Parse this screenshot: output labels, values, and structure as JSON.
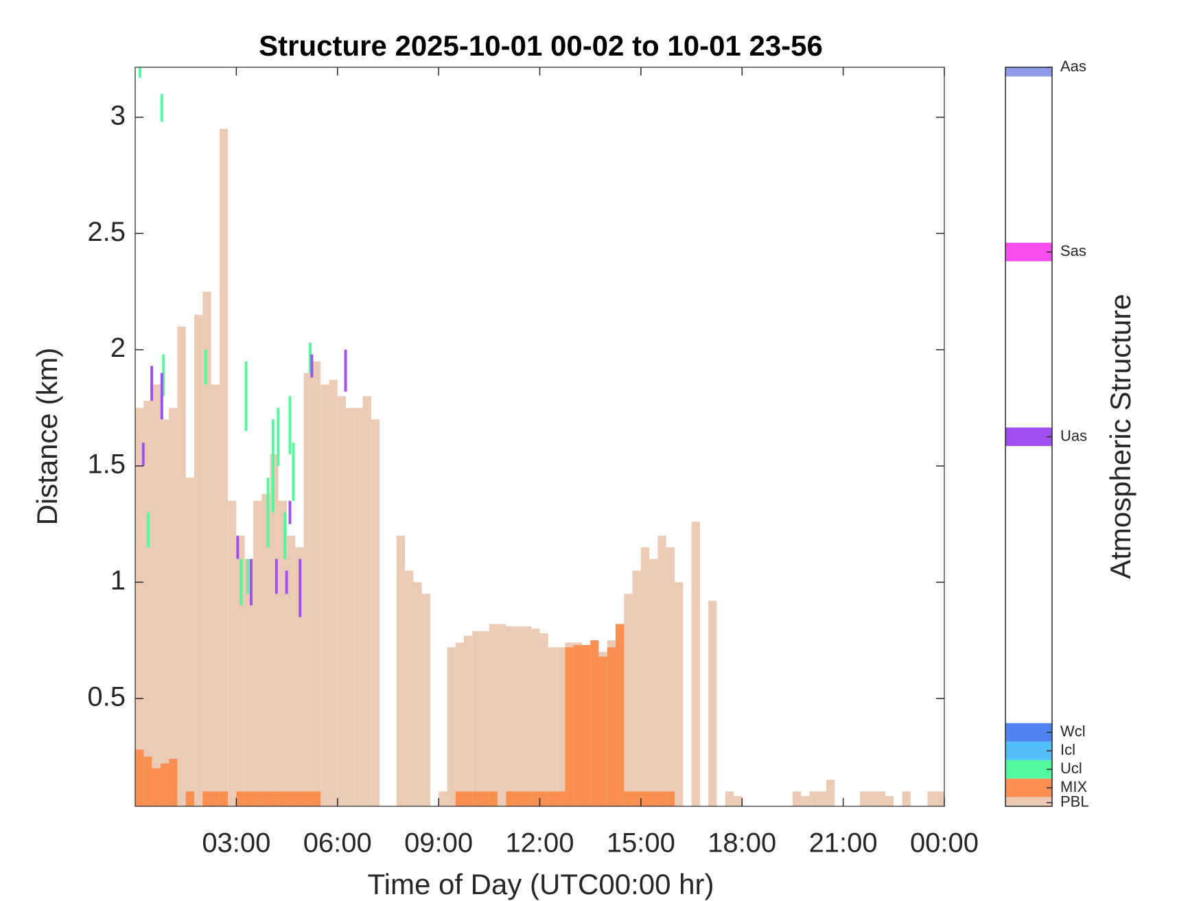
{
  "chart_data": {
    "type": "structure",
    "title": "Structure 2025-10-01 00-02 to 10-01 23-56",
    "xlabel": "Time of Day (UTC00:00 hr)",
    "ylabel": "Distance (km)",
    "colorbar_label": "Atmospheric Structure",
    "xlim": [
      0,
      24
    ],
    "xticks": [
      {
        "value": 3,
        "label": "03:00"
      },
      {
        "value": 6,
        "label": "06:00"
      },
      {
        "value": 9,
        "label": "09:00"
      },
      {
        "value": 12,
        "label": "12:00"
      },
      {
        "value": 15,
        "label": "15:00"
      },
      {
        "value": 18,
        "label": "18:00"
      },
      {
        "value": 21,
        "label": "21:00"
      },
      {
        "value": 24,
        "label": "00:00"
      }
    ],
    "ylim": [
      0.036,
      3.215
    ],
    "yticks": [
      0.5,
      1,
      1.5,
      2,
      2.5,
      3
    ],
    "clim": [
      0,
      40
    ],
    "structure": [
      {
        "name": "PBL",
        "color": "#ebcbb5",
        "level": 0.2,
        "x": [
          0,
          0.25,
          0.5,
          0.75,
          1,
          1.25,
          1.5,
          1.75,
          2,
          2.25,
          2.5,
          2.75,
          3,
          3.25,
          3.5,
          3.75,
          4,
          4.25,
          4.5,
          4.75,
          5,
          5.25,
          5.5,
          5.75,
          6,
          6.25,
          6.5,
          6.75,
          7,
          7.75,
          8,
          8.25,
          8.5,
          9,
          9.25,
          9.5,
          9.75,
          10,
          10.25,
          10.5,
          10.75,
          11,
          11.25,
          11.5,
          11.75,
          12,
          12.25,
          12.5,
          12.75,
          13,
          13.25,
          13.5,
          13.75,
          14,
          14.25,
          14.5,
          14.75,
          15,
          15.25,
          15.5,
          15.75,
          16,
          16.5,
          17,
          17.5,
          17.75,
          19.5,
          19.75,
          20,
          20.25,
          20.5,
          21.5,
          21.75,
          22,
          22.25,
          22.75,
          23.5,
          23.75
        ],
        "top": [
          1.75,
          1.78,
          1.85,
          1.7,
          1.75,
          2.1,
          1.45,
          2.15,
          2.25,
          1.85,
          2.95,
          1.35,
          1.2,
          1.1,
          1.35,
          1.38,
          1.55,
          1.35,
          1.2,
          1.15,
          1.9,
          1.95,
          1.85,
          1.87,
          1.8,
          1.75,
          1.75,
          1.8,
          1.7,
          1.2,
          1.05,
          1.0,
          0.95,
          0.1,
          0.72,
          0.74,
          0.77,
          0.79,
          0.79,
          0.82,
          0.82,
          0.81,
          0.81,
          0.81,
          0.8,
          0.78,
          0.72,
          0.72,
          0.74,
          0.74,
          0.72,
          0.72,
          0.7,
          0.75,
          0.82,
          0.95,
          1.05,
          1.15,
          1.1,
          1.2,
          1.15,
          1.0,
          1.26,
          0.92,
          0.1,
          0.08,
          0.1,
          0.08,
          0.1,
          0.1,
          0.15,
          0.1,
          0.1,
          0.1,
          0.08,
          0.1,
          0.1,
          0.1
        ]
      },
      {
        "name": "MIX",
        "color": "#fa8f52",
        "level": 1,
        "x": [
          0,
          0.25,
          0.5,
          0.75,
          1,
          1.5,
          2,
          2.25,
          2.5,
          3,
          3.25,
          3.5,
          3.75,
          4,
          4.25,
          4.5,
          4.75,
          5,
          5.25,
          9.5,
          9.75,
          10,
          10.25,
          10.5,
          11,
          11.25,
          11.5,
          11.75,
          12,
          12.25,
          12.5,
          12.75,
          13,
          13.25,
          13.5,
          13.75,
          14,
          14.25,
          14.5,
          14.75,
          15,
          15.25,
          15.5,
          15.75
        ],
        "top": [
          0.28,
          0.25,
          0.2,
          0.22,
          0.24,
          0.1,
          0.1,
          0.1,
          0.1,
          0.1,
          0.1,
          0.1,
          0.1,
          0.1,
          0.1,
          0.1,
          0.1,
          0.1,
          0.1,
          0.1,
          0.1,
          0.1,
          0.1,
          0.1,
          0.1,
          0.1,
          0.1,
          0.1,
          0.1,
          0.1,
          0.1,
          0.72,
          0.73,
          0.73,
          0.75,
          0.68,
          0.72,
          0.82,
          0.1,
          0.1,
          0.1,
          0.1,
          0.1,
          0.1
        ]
      },
      {
        "name": "Ucl",
        "color": "#52fa9e",
        "level": 2,
        "x": [
          0.1,
          0.75,
          0.35,
          0.8,
          2.05,
          3.1,
          3.25,
          3.3,
          3.9,
          4.05,
          4.2,
          4.55,
          4.65,
          4.4,
          5.15
        ],
        "bottom": [
          3.17,
          2.98,
          1.15,
          1.8,
          1.85,
          0.9,
          1.65,
          0.95,
          1.15,
          1.3,
          1.5,
          1.55,
          1.35,
          1.1,
          1.9
        ],
        "top": [
          3.22,
          3.1,
          1.3,
          1.98,
          2.0,
          1.1,
          1.95,
          1.1,
          1.45,
          1.7,
          1.75,
          1.8,
          1.6,
          1.3,
          2.03
        ]
      },
      {
        "name": "Icl",
        "color": "#52bffa",
        "level": 3
      },
      {
        "name": "Wcl",
        "color": "#5082f0",
        "level": 4
      },
      {
        "name": "Uas",
        "color": "#9f4ff0",
        "level": 20,
        "x": [
          0.2,
          0.45,
          0.75,
          3.0,
          3.4,
          4.15,
          4.45,
          4.55,
          4.85,
          5.2,
          6.2
        ],
        "bottom": [
          1.5,
          1.78,
          1.7,
          1.1,
          0.9,
          0.95,
          0.95,
          1.25,
          0.85,
          1.88,
          1.82
        ],
        "top": [
          1.6,
          1.93,
          1.9,
          1.2,
          1.1,
          1.1,
          1.05,
          1.35,
          1.1,
          1.98,
          2.0
        ]
      },
      {
        "name": "Sas",
        "color": "#f94ff0",
        "level": 30
      },
      {
        "name": "Aas",
        "color": "#8f9ae8",
        "level": 40
      }
    ]
  }
}
